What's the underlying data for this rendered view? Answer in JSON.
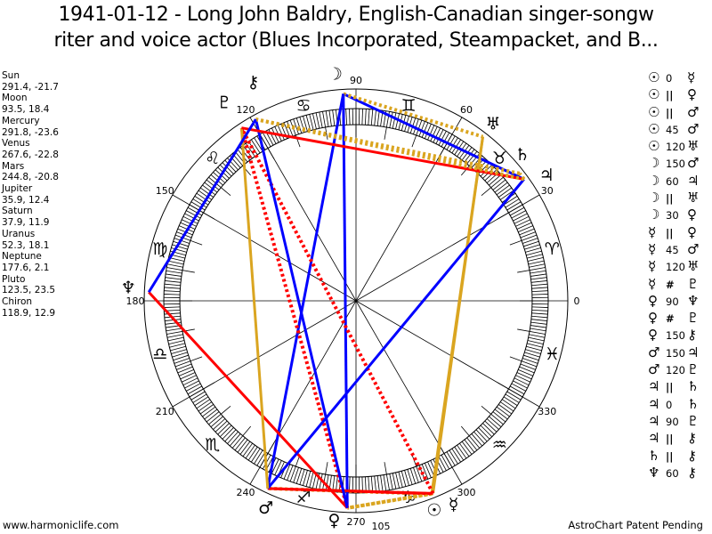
{
  "title": {
    "line1": "1941-01-12 - Long John Baldry, English-Canadian singer-songw",
    "line2": "riter and voice actor (Blues Incorporated, Steampacket, and B..."
  },
  "planets": [
    {
      "key": "sun",
      "name": "Sun",
      "glyph": "☉",
      "lon": 291.4,
      "dec": -21.7,
      "coords": "291.4, -21.7"
    },
    {
      "key": "moon",
      "name": "Moon",
      "glyph": "☽",
      "lon": 93.5,
      "dec": 18.4,
      "coords": "93.5, 18.4"
    },
    {
      "key": "mercury",
      "name": "Mercury",
      "glyph": "☿",
      "lon": 291.8,
      "dec": -23.6,
      "coords": "291.8, -23.6"
    },
    {
      "key": "venus",
      "name": "Venus",
      "glyph": "♀",
      "lon": 267.6,
      "dec": -22.8,
      "coords": "267.6, -22.8"
    },
    {
      "key": "mars",
      "name": "Mars",
      "glyph": "♂",
      "lon": 244.8,
      "dec": -20.8,
      "coords": "244.8, -20.8"
    },
    {
      "key": "jupiter",
      "name": "Jupiter",
      "glyph": "♃",
      "lon": 35.9,
      "dec": 12.4,
      "coords": "35.9, 12.4"
    },
    {
      "key": "saturn",
      "name": "Saturn",
      "glyph": "♄",
      "lon": 37.9,
      "dec": 11.9,
      "coords": "37.9, 11.9"
    },
    {
      "key": "uranus",
      "name": "Uranus",
      "glyph": "♅",
      "lon": 52.3,
      "dec": 18.1,
      "coords": "52.3, 18.1"
    },
    {
      "key": "neptune",
      "name": "Neptune",
      "glyph": "♆",
      "lon": 177.6,
      "dec": 2.1,
      "coords": "177.6, 2.1"
    },
    {
      "key": "pluto",
      "name": "Pluto",
      "glyph": "♇",
      "lon": 123.5,
      "dec": 23.5,
      "coords": "123.5, 23.5"
    },
    {
      "key": "chiron",
      "name": "Chiron",
      "glyph": "⚷",
      "lon": 118.9,
      "dec": 12.9,
      "coords": "118.9, 12.9"
    }
  ],
  "aspects": [
    {
      "p1": "sun",
      "type": "0",
      "p2": "mercury"
    },
    {
      "p1": "sun",
      "type": "||",
      "p2": "venus"
    },
    {
      "p1": "sun",
      "type": "||",
      "p2": "mars"
    },
    {
      "p1": "sun",
      "type": "45",
      "p2": "mars"
    },
    {
      "p1": "sun",
      "type": "120",
      "p2": "uranus"
    },
    {
      "p1": "moon",
      "type": "150",
      "p2": "mars"
    },
    {
      "p1": "moon",
      "type": "60",
      "p2": "jupiter"
    },
    {
      "p1": "moon",
      "type": "||",
      "p2": "uranus"
    },
    {
      "p1": "moon",
      "type": "30",
      "p2": "venus"
    },
    {
      "p1": "mercury",
      "type": "||",
      "p2": "venus"
    },
    {
      "p1": "mercury",
      "type": "45",
      "p2": "mars"
    },
    {
      "p1": "mercury",
      "type": "120",
      "p2": "uranus"
    },
    {
      "p1": "mercury",
      "type": "#",
      "p2": "pluto"
    },
    {
      "p1": "venus",
      "type": "90",
      "p2": "neptune"
    },
    {
      "p1": "venus",
      "type": "#",
      "p2": "pluto"
    },
    {
      "p1": "venus",
      "type": "150",
      "p2": "chiron"
    },
    {
      "p1": "mars",
      "type": "150",
      "p2": "jupiter"
    },
    {
      "p1": "mars",
      "type": "120",
      "p2": "pluto"
    },
    {
      "p1": "jupiter",
      "type": "||",
      "p2": "saturn"
    },
    {
      "p1": "jupiter",
      "type": "0",
      "p2": "saturn"
    },
    {
      "p1": "jupiter",
      "type": "90",
      "p2": "pluto"
    },
    {
      "p1": "jupiter",
      "type": "||",
      "p2": "chiron"
    },
    {
      "p1": "saturn",
      "type": "||",
      "p2": "chiron"
    },
    {
      "p1": "neptune",
      "type": "60",
      "p2": "chiron"
    }
  ],
  "aspect_styles": {
    "30": {
      "color": "#0000ff",
      "dotted": false
    },
    "45": {
      "color": "#ff0000",
      "dotted": false
    },
    "60": {
      "color": "#0000ff",
      "dotted": false
    },
    "90": {
      "color": "#ff0000",
      "dotted": false
    },
    "120": {
      "color": "#daa520",
      "dotted": false
    },
    "150": {
      "color": "#0000ff",
      "dotted": false
    },
    "||": {
      "color": "#daa520",
      "dotted": true
    },
    "#": {
      "color": "#ff0000",
      "dotted": true
    }
  },
  "zodiac": [
    {
      "sign": "Aries",
      "glyph": "♈"
    },
    {
      "sign": "Taurus",
      "glyph": "♉"
    },
    {
      "sign": "Gemini",
      "glyph": "♊"
    },
    {
      "sign": "Cancer",
      "glyph": "♋"
    },
    {
      "sign": "Leo",
      "glyph": "♌"
    },
    {
      "sign": "Virgo",
      "glyph": "♍"
    },
    {
      "sign": "Libra",
      "glyph": "♎"
    },
    {
      "sign": "Scorpio",
      "glyph": "♏"
    },
    {
      "sign": "Sagittarius",
      "glyph": "♐"
    },
    {
      "sign": "Capricorn",
      "glyph": "♑"
    },
    {
      "sign": "Aquarius",
      "glyph": "♒"
    },
    {
      "sign": "Pisces",
      "glyph": "♓"
    }
  ],
  "degree_labels": [
    "0",
    "30",
    "60",
    "90",
    "120",
    "150",
    "180",
    "210",
    "240",
    "270",
    "300",
    "330"
  ],
  "extra_label": "105",
  "footer": {
    "left": "www.harmoniclife.com",
    "right": "AstroChart Patent Pending"
  }
}
